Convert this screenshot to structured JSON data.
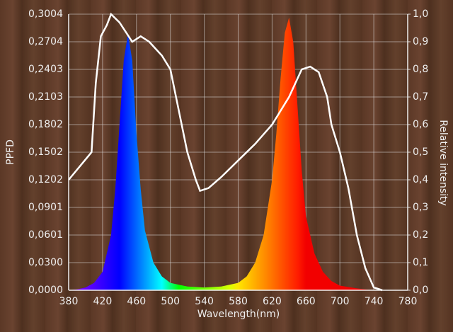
{
  "chart_data": {
    "type": "spectrum",
    "xlabel": "Wavelength(nm)",
    "ylabel": "PPFD",
    "y2label": "Relative intensity",
    "xlim": [
      380,
      780
    ],
    "xticks": [
      380,
      420,
      460,
      500,
      540,
      580,
      620,
      660,
      700,
      740,
      780
    ],
    "ylim": [
      0,
      0.3004
    ],
    "yticks": [
      {
        "value": 0,
        "label": "0,0000"
      },
      {
        "value": 0.03,
        "label": "0,0300"
      },
      {
        "value": 0.0601,
        "label": "0,0601"
      },
      {
        "value": 0.0901,
        "label": "0,0901"
      },
      {
        "value": 0.1202,
        "label": "0,1202"
      },
      {
        "value": 0.1502,
        "label": "0,1502"
      },
      {
        "value": 0.1802,
        "label": "0,1802"
      },
      {
        "value": 0.2103,
        "label": "0,2103"
      },
      {
        "value": 0.2403,
        "label": "0,2403"
      },
      {
        "value": 0.2704,
        "label": "0,2704"
      },
      {
        "value": 0.3004,
        "label": "0,3004"
      }
    ],
    "y2lim": [
      0,
      1
    ],
    "y2ticks": [
      {
        "value": 0,
        "label": "0,0"
      },
      {
        "value": 0.1,
        "label": "0,1"
      },
      {
        "value": 0.2,
        "label": "0,2"
      },
      {
        "value": 0.3,
        "label": "0,3"
      },
      {
        "value": 0.4,
        "label": "0,4"
      },
      {
        "value": 0.5,
        "label": "0,5"
      },
      {
        "value": 0.6,
        "label": "0,6"
      },
      {
        "value": 0.7,
        "label": "0,7"
      },
      {
        "value": 0.8,
        "label": "0,8"
      },
      {
        "value": 0.9,
        "label": "0,9"
      },
      {
        "value": 1,
        "label": "1,0"
      }
    ],
    "grid": true,
    "series": [
      {
        "fill": "wavelength",
        "x": [
          380,
          390,
          400,
          410,
          420,
          430,
          435,
          440,
          445,
          450,
          455,
          460,
          465,
          470,
          480,
          490,
          500,
          520,
          540,
          560,
          580,
          590,
          600,
          610,
          620,
          625,
          630,
          635,
          640,
          645,
          650,
          655,
          660,
          670,
          680,
          690,
          700,
          720,
          740,
          780
        ],
        "values": [
          0,
          0.001,
          0.003,
          0.008,
          0.02,
          0.06,
          0.11,
          0.18,
          0.25,
          0.279,
          0.25,
          0.17,
          0.11,
          0.065,
          0.03,
          0.015,
          0.008,
          0.004,
          0.003,
          0.004,
          0.008,
          0.015,
          0.03,
          0.06,
          0.12,
          0.17,
          0.23,
          0.28,
          0.2966,
          0.27,
          0.2,
          0.13,
          0.08,
          0.04,
          0.02,
          0.01,
          0.005,
          0.002,
          0,
          0
        ]
      },
      {
        "axis": "y2",
        "color": "#ffffff",
        "x": [
          380,
          407,
          412,
          418,
          425,
          430,
          440,
          455,
          465,
          475,
          490,
          500,
          510,
          520,
          530,
          535,
          545,
          560,
          580,
          600,
          620,
          640,
          655,
          665,
          675,
          685,
          690,
          700,
          710,
          720,
          730,
          740,
          750
        ],
        "values": [
          0.4,
          0.5,
          0.75,
          0.92,
          0.96,
          1.0,
          0.97,
          0.9,
          0.92,
          0.9,
          0.85,
          0.8,
          0.65,
          0.5,
          0.4,
          0.36,
          0.37,
          0.41,
          0.47,
          0.53,
          0.6,
          0.7,
          0.8,
          0.81,
          0.79,
          0.7,
          0.6,
          0.5,
          0.37,
          0.2,
          0.08,
          0.01,
          0
        ]
      }
    ]
  }
}
